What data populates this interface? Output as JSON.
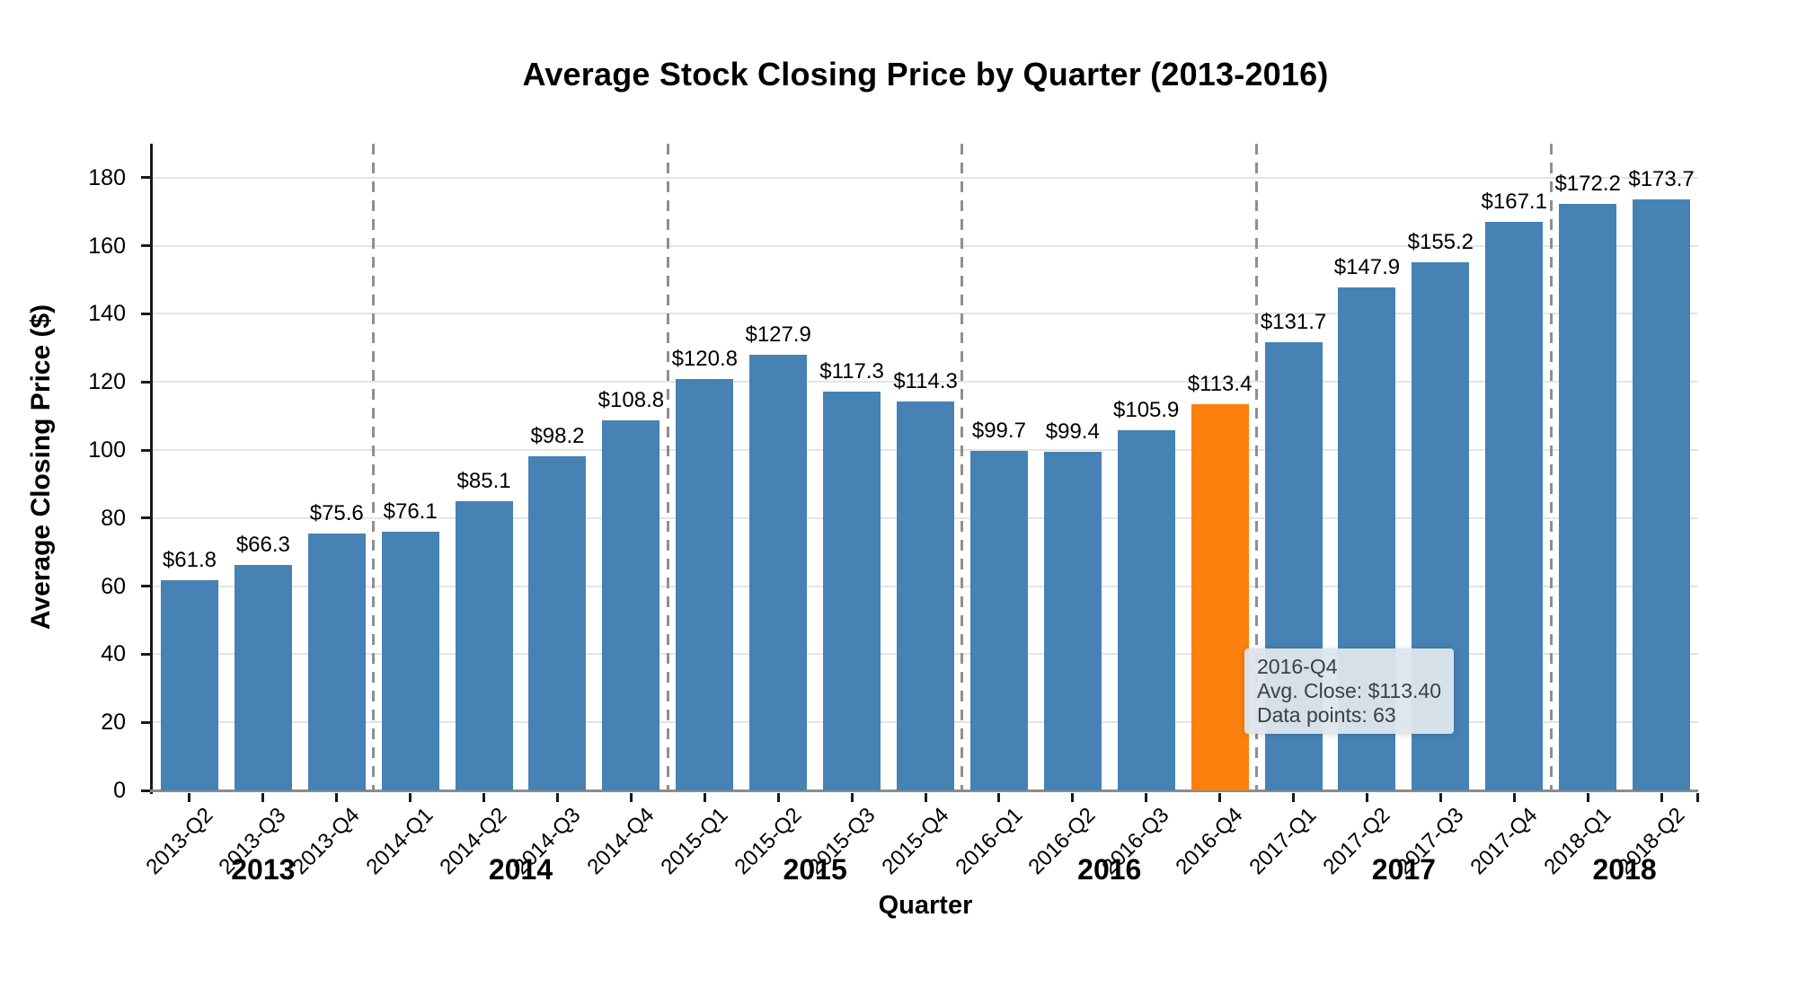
{
  "header": {
    "title": "Average Stock Closing Price by Quarter (2013-2016)"
  },
  "axes": {
    "y": {
      "label": "Average Closing Price ($)"
    },
    "x": {
      "label": "Quarter"
    }
  },
  "chart_data": {
    "type": "bar",
    "title": "Average Stock Closing Price by Quarter (2013-2016)",
    "xlabel": "Quarter",
    "ylabel": "Average Closing Price ($)",
    "ylim": [
      0,
      190
    ],
    "yticks": [
      0,
      20,
      40,
      60,
      80,
      100,
      120,
      140,
      160,
      180
    ],
    "grid": true,
    "legend": "none",
    "categories": [
      "2013-Q2",
      "2013-Q3",
      "2013-Q4",
      "2014-Q1",
      "2014-Q2",
      "2014-Q3",
      "2014-Q4",
      "2015-Q1",
      "2015-Q2",
      "2015-Q3",
      "2015-Q4",
      "2016-Q1",
      "2016-Q2",
      "2016-Q3",
      "2016-Q4",
      "2017-Q1",
      "2017-Q2",
      "2017-Q3",
      "2017-Q4",
      "2018-Q1",
      "2018-Q2"
    ],
    "values": [
      61.8,
      66.3,
      75.6,
      76.1,
      85.1,
      98.2,
      108.8,
      120.8,
      127.9,
      117.3,
      114.3,
      99.7,
      99.4,
      105.9,
      113.4,
      131.7,
      147.9,
      155.2,
      167.1,
      172.2,
      173.7
    ],
    "bar_value_labels": [
      "$61.8",
      "$66.3",
      "$75.6",
      "$76.1",
      "$85.1",
      "$98.2",
      "$108.8",
      "$120.8",
      "$127.9",
      "$117.3",
      "$114.3",
      "$99.7",
      "$99.4",
      "$105.9",
      "$113.4",
      "$131.7",
      "$147.9",
      "$155.2",
      "$167.1",
      "$172.2",
      "$173.7"
    ],
    "highlight_index": 14,
    "highlighted_category": "2016-Q4",
    "year_groups": [
      {
        "label": "2013",
        "bars": 3
      },
      {
        "label": "2014",
        "bars": 4
      },
      {
        "label": "2015",
        "bars": 4
      },
      {
        "label": "2016",
        "bars": 4
      },
      {
        "label": "2017",
        "bars": 4
      },
      {
        "label": "2018",
        "bars": 2
      }
    ],
    "colors": {
      "bar": "#4682B4",
      "highlight": "#FC800D",
      "gridline": "#E4E4E4",
      "year_divider": "#8F8F8F",
      "baseline": "#8C8C8C",
      "spine": "#1A1A1A",
      "tooltip_background": "#DDE5EC",
      "tooltip_text": "#3A4045"
    }
  },
  "tooltip": {
    "title": "2016-Q4",
    "avg_close": "Avg. Close: $113.40",
    "data_points": "Data points: 63"
  }
}
